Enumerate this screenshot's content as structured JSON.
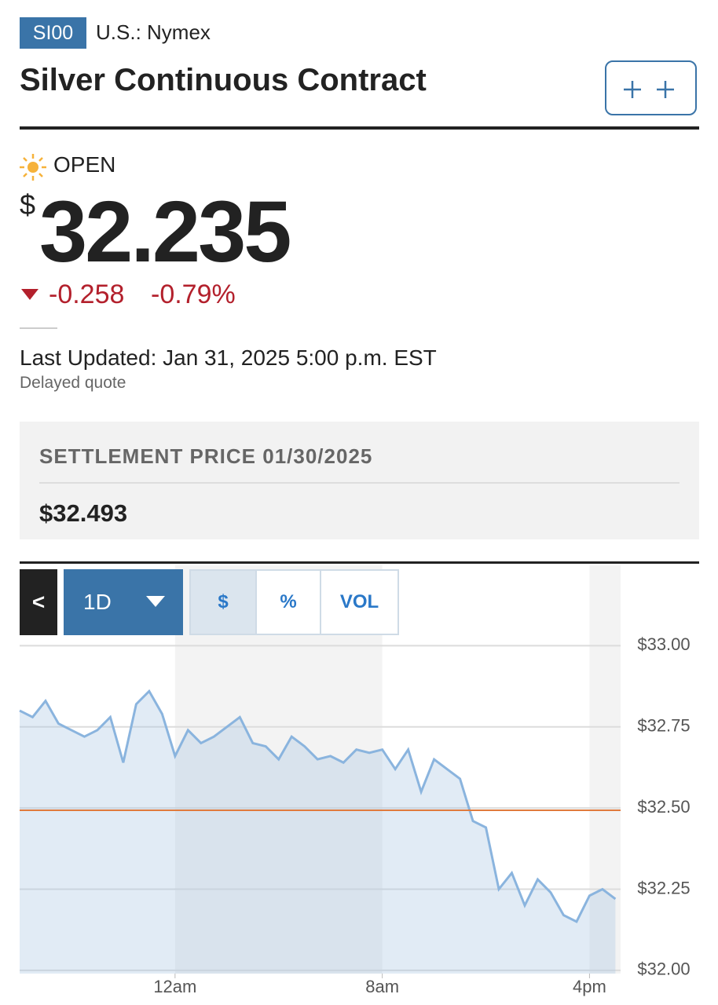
{
  "header": {
    "symbol": "SI00",
    "exchange": "U.S.: Nymex",
    "name": "Silver Continuous Contract"
  },
  "quote": {
    "status": "OPEN",
    "currency": "$",
    "price": "32.235",
    "change": "-0.258",
    "change_percent": "-0.79%",
    "updated": "Last Updated: Jan 31, 2025 5:00 p.m. EST",
    "delay": "Delayed quote"
  },
  "settlement": {
    "title": "SETTLEMENT PRICE 01/30/2025",
    "price": {
      "value": 32.493,
      "label": "$32.493"
    }
  },
  "controls": {
    "back": "<",
    "range": "1D",
    "modes": [
      "$",
      "%",
      "VOL"
    ]
  },
  "chart_data": {
    "type": "line",
    "x": [
      -6,
      -5.5,
      -5,
      -4.5,
      -4,
      -3.5,
      -3,
      -2.5,
      -2,
      -1.5,
      -1,
      -0.5,
      0,
      0.5,
      1,
      1.5,
      2,
      2.5,
      3,
      3.5,
      4,
      4.5,
      5,
      5.5,
      6,
      6.5,
      7,
      7.5,
      8,
      8.5,
      9,
      9.5,
      10,
      10.5,
      11,
      11.5,
      12,
      12.5,
      13,
      13.5,
      14,
      14.5,
      15,
      15.5,
      16,
      16.5,
      17
    ],
    "series": [
      {
        "color": "#8ab4de",
        "values": [
          32.8,
          32.78,
          32.83,
          32.76,
          32.74,
          32.72,
          32.74,
          32.78,
          32.64,
          32.82,
          32.86,
          32.79,
          32.66,
          32.74,
          32.7,
          32.72,
          32.75,
          32.78,
          32.7,
          32.69,
          32.65,
          32.72,
          32.69,
          32.65,
          32.66,
          32.64,
          32.68,
          32.67,
          32.68,
          32.62,
          32.68,
          32.55,
          32.65,
          32.62,
          32.59,
          32.46,
          32.44,
          32.25,
          32.3,
          32.2,
          32.28,
          32.24,
          32.17,
          32.15,
          32.23,
          32.25,
          32.22
        ]
      }
    ],
    "xlim": [
      -6,
      17.2
    ],
    "xticks": [
      {
        "value": 0,
        "label": "12am"
      },
      {
        "value": 8,
        "label": "8am"
      },
      {
        "value": 16,
        "label": "4pm"
      }
    ],
    "ylim": [
      31.99,
      33.03
    ],
    "yticks": [
      {
        "value": 32,
        "label": "$32.00"
      },
      {
        "value": 32.25,
        "label": "$32.25"
      },
      {
        "value": 32.5,
        "label": "$32.50"
      },
      {
        "value": 32.75,
        "label": "$32.75"
      },
      {
        "value": 33,
        "label": "$33.00"
      }
    ],
    "grid": true
  }
}
